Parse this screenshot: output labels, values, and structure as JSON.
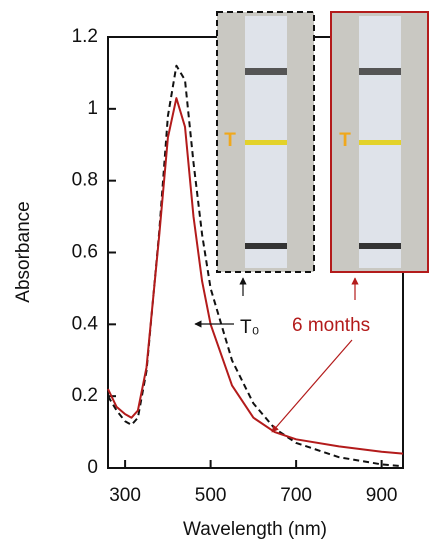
{
  "chart_data": {
    "type": "line",
    "xlabel": "Wavelength (nm)",
    "ylabel": "Absorbance",
    "x": [
      260,
      280,
      300,
      315,
      330,
      350,
      380,
      400,
      420,
      440,
      460,
      480,
      500,
      550,
      600,
      650,
      700,
      800,
      900,
      950
    ],
    "series": [
      {
        "name": "T₀",
        "color": "#111111",
        "dash": true,
        "values": [
          0.2,
          0.16,
          0.13,
          0.12,
          0.14,
          0.27,
          0.66,
          0.98,
          1.12,
          1.08,
          0.85,
          0.65,
          0.5,
          0.3,
          0.18,
          0.11,
          0.07,
          0.03,
          0.01,
          0.005
        ]
      },
      {
        "name": "6 months",
        "color": "#b31b1b",
        "dash": false,
        "values": [
          0.22,
          0.17,
          0.15,
          0.14,
          0.16,
          0.28,
          0.65,
          0.92,
          1.03,
          0.95,
          0.7,
          0.52,
          0.4,
          0.23,
          0.14,
          0.1,
          0.08,
          0.06,
          0.045,
          0.04
        ]
      }
    ],
    "xlim": [
      260,
      950
    ],
    "xticks": [
      300,
      500,
      700,
      900
    ],
    "ylim": [
      0,
      1.2
    ],
    "yticks": [
      0,
      0.2,
      0.4,
      0.6,
      0.8,
      1,
      1.2
    ],
    "strip_labels": [
      "T",
      "T"
    ]
  }
}
